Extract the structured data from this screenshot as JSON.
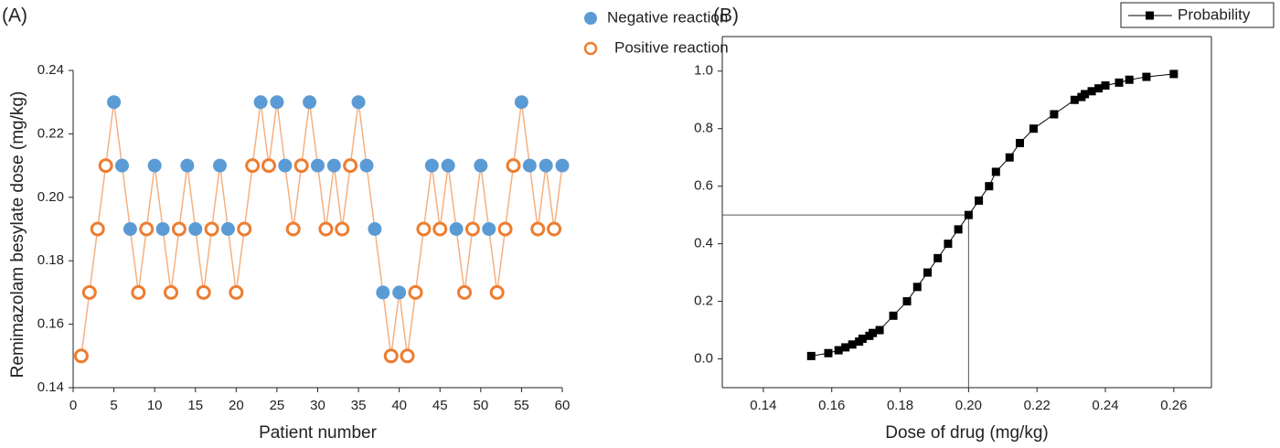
{
  "chart_data": [
    {
      "type": "line",
      "panel_label": "(A)",
      "x_label": "Patient number",
      "y_label": "Remimazolam besylate dose (mg/kg)",
      "x": [
        1,
        2,
        3,
        4,
        5,
        6,
        7,
        8,
        9,
        10,
        11,
        12,
        13,
        14,
        15,
        16,
        17,
        18,
        19,
        20,
        21,
        22,
        23,
        24,
        25,
        26,
        27,
        28,
        29,
        30,
        31,
        32,
        33,
        34,
        35,
        36,
        37,
        38,
        39,
        40,
        41,
        42,
        43,
        44,
        45,
        46,
        47,
        48,
        49,
        50,
        51,
        52,
        53,
        54,
        55,
        56,
        57,
        58,
        59,
        60
      ],
      "series": [
        {
          "name": "Negative reaction",
          "color": "#5b9bd5",
          "marker": "filled",
          "values": [
            null,
            null,
            null,
            null,
            0.23,
            0.21,
            0.19,
            null,
            null,
            0.21,
            0.19,
            null,
            null,
            0.21,
            0.19,
            null,
            null,
            0.21,
            0.19,
            null,
            null,
            null,
            0.23,
            null,
            0.23,
            0.21,
            null,
            null,
            0.23,
            0.21,
            null,
            0.21,
            null,
            null,
            0.23,
            0.21,
            0.19,
            0.17,
            null,
            0.17,
            null,
            null,
            null,
            0.21,
            null,
            0.21,
            0.19,
            null,
            null,
            0.21,
            0.19,
            null,
            null,
            null,
            0.23,
            0.21,
            null,
            0.21,
            null,
            0.21
          ]
        },
        {
          "name": "Positive reaction",
          "color": "#ed7d31",
          "marker": "open",
          "values": [
            0.15,
            0.17,
            0.19,
            0.21,
            null,
            null,
            null,
            0.17,
            0.19,
            null,
            null,
            0.17,
            0.19,
            null,
            null,
            0.17,
            0.19,
            null,
            null,
            0.17,
            0.19,
            0.21,
            null,
            0.21,
            null,
            null,
            0.19,
            0.21,
            null,
            null,
            0.19,
            null,
            0.19,
            0.21,
            null,
            null,
            null,
            null,
            0.15,
            null,
            0.15,
            0.17,
            0.19,
            null,
            0.19,
            null,
            null,
            0.17,
            0.19,
            null,
            null,
            0.17,
            0.19,
            0.21,
            null,
            null,
            0.19,
            null,
            0.19,
            null
          ]
        }
      ],
      "line_color": "#f4b183",
      "xlim": [
        0,
        60
      ],
      "xticks": [
        0,
        5,
        10,
        15,
        20,
        25,
        30,
        35,
        40,
        45,
        50,
        55,
        60
      ],
      "ylim": [
        0.14,
        0.24
      ],
      "yticks": [
        0.14,
        0.16,
        0.18,
        {
          "value": 0.2,
          "label": "0.20"
        },
        0.22,
        0.24
      ]
    },
    {
      "type": "scatter",
      "panel_label": "(B)",
      "x_label": "Dose of drug (mg/kg)",
      "x": [
        0.154,
        0.159,
        0.162,
        0.164,
        0.166,
        0.168,
        0.169,
        0.171,
        0.172,
        0.174,
        0.178,
        0.182,
        0.185,
        0.188,
        0.191,
        0.194,
        0.197,
        0.2,
        0.203,
        0.206,
        0.208,
        0.212,
        0.215,
        0.219,
        0.225,
        0.231,
        0.233,
        0.234,
        0.236,
        0.238,
        0.24,
        0.244,
        0.247,
        0.252,
        0.26
      ],
      "series": [
        {
          "name": "Probability",
          "color": "#000000",
          "values": [
            0.01,
            0.02,
            0.03,
            0.04,
            0.05,
            0.06,
            0.07,
            0.08,
            0.09,
            0.1,
            0.15,
            0.2,
            0.25,
            0.3,
            0.35,
            0.4,
            0.45,
            0.5,
            0.55,
            0.6,
            0.65,
            0.7,
            0.75,
            0.8,
            0.85,
            0.9,
            0.91,
            0.92,
            0.93,
            0.94,
            0.95,
            0.96,
            0.97,
            0.98,
            0.99
          ]
        }
      ],
      "guides": {
        "x": 0.2,
        "y": 0.5
      },
      "xlim": [
        0.128,
        0.271
      ],
      "xticks": [
        0.14,
        0.16,
        0.18,
        {
          "value": 0.2,
          "label": "0.20"
        },
        0.22,
        0.24,
        0.26
      ],
      "ylim": [
        -0.1,
        1.12
      ],
      "yticks": [
        {
          "value": 0,
          "label": "0.0"
        },
        0.2,
        0.4,
        0.6,
        0.8,
        {
          "value": 1,
          "label": "1.0"
        }
      ]
    }
  ]
}
